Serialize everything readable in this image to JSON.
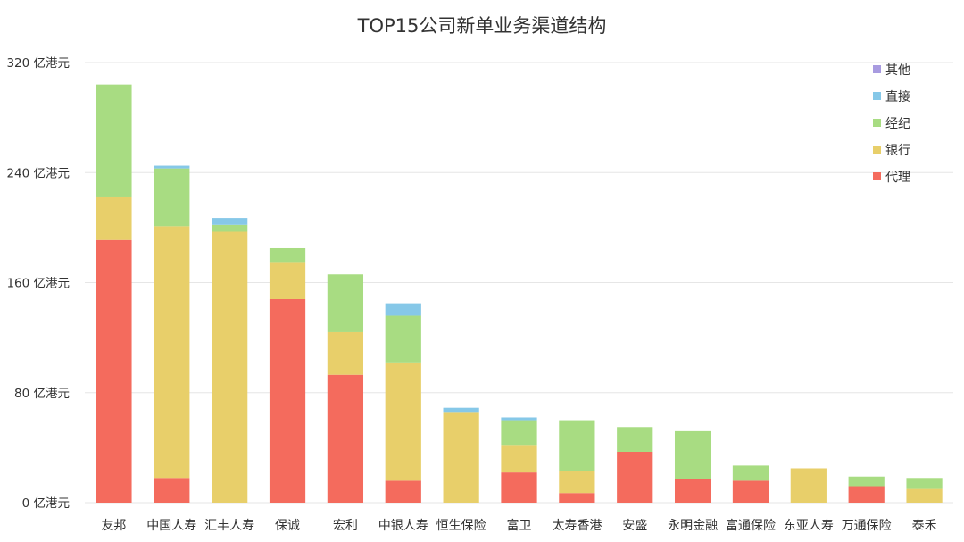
{
  "chart_data": {
    "type": "bar",
    "stacked": true,
    "title": "TOP15公司新单业务渠道结构",
    "xlabel": "",
    "ylabel": "",
    "ylim": [
      0,
      320
    ],
    "yticks": [
      "0 亿港元",
      "80 亿港元",
      "160 亿港元",
      "240 亿港元",
      "320 亿港元"
    ],
    "grid": true,
    "legend_position": "top-right",
    "categories": [
      "友邦",
      "中国人寿",
      "汇丰人寿",
      "保诚",
      "宏利",
      "中银人寿",
      "恒生保险",
      "富卫",
      "太寿香港",
      "安盛",
      "永明金融",
      "富通保险",
      "东亚人寿",
      "万通保险",
      "泰禾"
    ],
    "series": [
      {
        "name": "代理",
        "color": "#f46b5d",
        "values": [
          191,
          18,
          0,
          148,
          93,
          16,
          0,
          22,
          7,
          37,
          17,
          16,
          0,
          12,
          0
        ]
      },
      {
        "name": "银行",
        "color": "#e8cf6a",
        "values": [
          31,
          183,
          197,
          27,
          31,
          86,
          66,
          20,
          16,
          0,
          0,
          0,
          25,
          0,
          10
        ]
      },
      {
        "name": "经纪",
        "color": "#a8dc82",
        "values": [
          82,
          42,
          5,
          10,
          42,
          34,
          0,
          18,
          37,
          18,
          35,
          11,
          0,
          7,
          8
        ]
      },
      {
        "name": "直接",
        "color": "#86c8e8",
        "values": [
          0,
          2,
          5,
          0,
          0,
          9,
          3,
          2,
          0,
          0,
          0,
          0,
          0,
          0,
          0
        ]
      },
      {
        "name": "其他",
        "color": "#a89be0",
        "values": [
          0,
          0,
          0,
          0,
          0,
          0,
          0,
          0,
          0,
          0,
          0,
          0,
          0,
          0,
          0
        ]
      }
    ],
    "legend_order": [
      "其他",
      "直接",
      "经纪",
      "银行",
      "代理"
    ]
  }
}
